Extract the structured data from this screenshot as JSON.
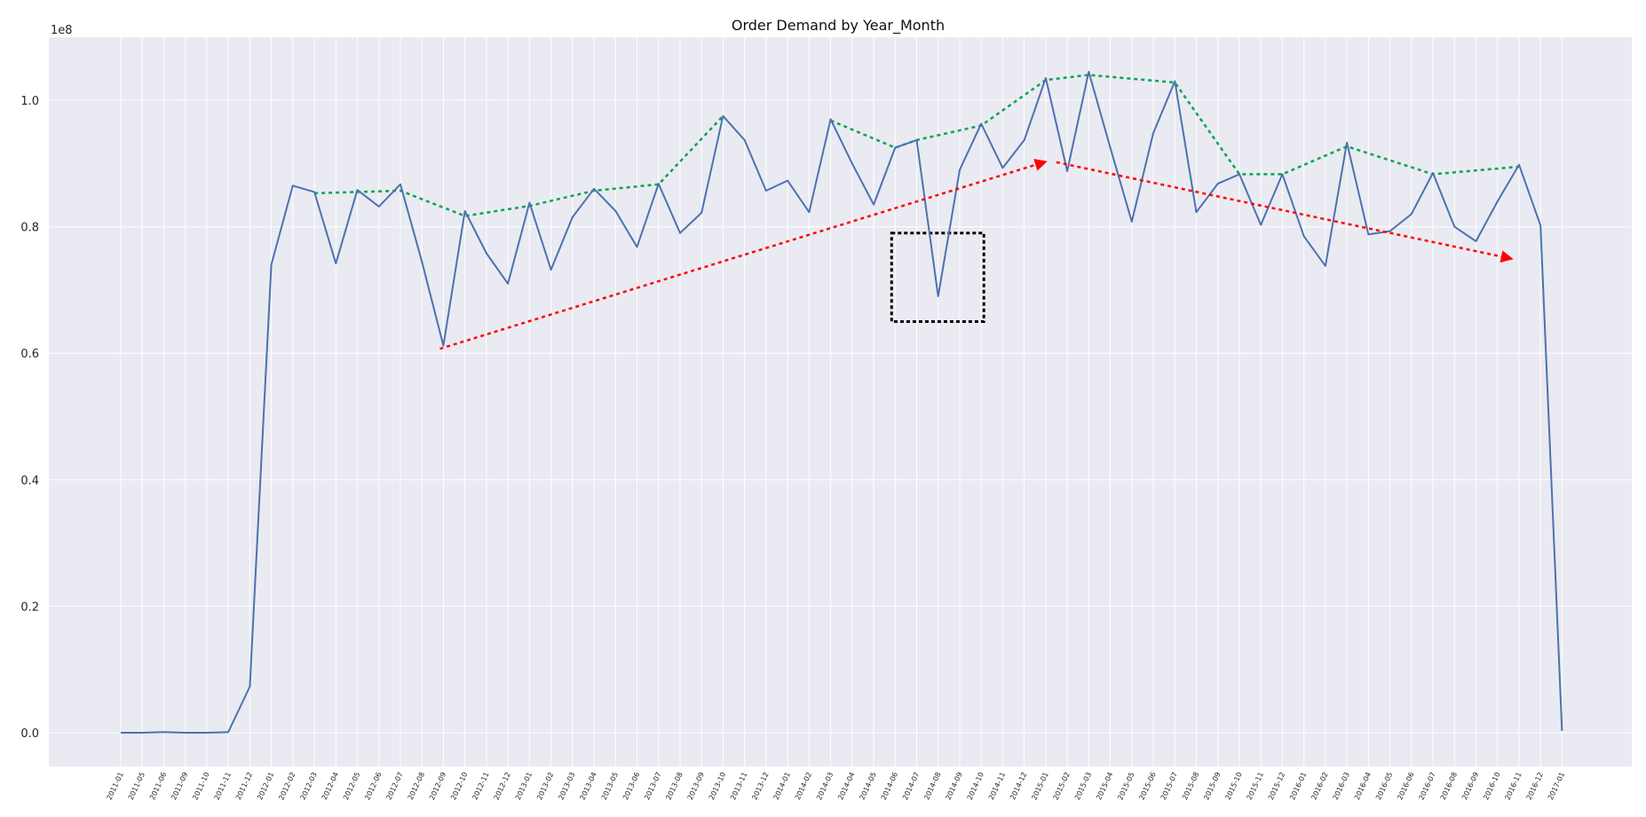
{
  "chart_data": {
    "type": "line",
    "title": "Order Demand by Year_Month",
    "xlabel": "",
    "ylabel": "",
    "y_scale_offset": "1e8",
    "ylim": [
      -0.055,
      1.1
    ],
    "y_ticks": [
      0.0,
      0.2,
      0.4,
      0.6,
      0.8,
      1.0
    ],
    "y_tick_labels": [
      "0.0",
      "0.2",
      "0.4",
      "0.6",
      "0.8",
      "1.0"
    ],
    "grid": true,
    "legend": "none",
    "background": "#eaeaf2",
    "categories": [
      "2011-01",
      "2011-05",
      "2011-06",
      "2011-09",
      "2011-10",
      "2011-11",
      "2011-12",
      "2012-01",
      "2012-02",
      "2012-03",
      "2012-04",
      "2012-05",
      "2012-06",
      "2012-07",
      "2012-08",
      "2012-09",
      "2012-10",
      "2012-11",
      "2012-12",
      "2013-01",
      "2013-02",
      "2013-03",
      "2013-04",
      "2013-05",
      "2013-06",
      "2013-07",
      "2013-08",
      "2013-09",
      "2013-10",
      "2013-11",
      "2013-12",
      "2014-01",
      "2014-02",
      "2014-03",
      "2014-04",
      "2014-05",
      "2014-06",
      "2014-07",
      "2014-08",
      "2014-09",
      "2014-10",
      "2014-11",
      "2014-12",
      "2015-01",
      "2015-02",
      "2015-03",
      "2015-04",
      "2015-05",
      "2015-06",
      "2015-07",
      "2015-08",
      "2015-09",
      "2015-10",
      "2015-11",
      "2015-12",
      "2016-01",
      "2016-02",
      "2016-03",
      "2016-04",
      "2016-05",
      "2016-06",
      "2016-07",
      "2016-08",
      "2016-09",
      "2016-10",
      "2016-11",
      "2016-12",
      "2017-01"
    ],
    "series": [
      {
        "color": "#4c72b0",
        "values": [
          0.0,
          0.0,
          0.001,
          0.0,
          0.0,
          0.001,
          0.073,
          0.74,
          0.865,
          0.855,
          0.742,
          0.858,
          0.832,
          0.867,
          0.745,
          0.612,
          0.825,
          0.758,
          0.71,
          0.838,
          0.732,
          0.815,
          0.86,
          0.825,
          0.768,
          0.868,
          0.79,
          0.822,
          0.975,
          0.937,
          0.857,
          0.873,
          0.823,
          0.97,
          0.9,
          0.835,
          0.925,
          0.937,
          0.69,
          0.89,
          0.963,
          0.893,
          0.937,
          1.035,
          0.888,
          1.045,
          0.925,
          0.808,
          0.948,
          1.03,
          0.823,
          0.868,
          0.883,
          0.803,
          0.883,
          0.785,
          0.738,
          0.933,
          0.788,
          0.793,
          0.82,
          0.885,
          0.8,
          0.777,
          0.84,
          0.898,
          0.802,
          0.003
        ]
      }
    ],
    "annotations": {
      "upper_envelope": {
        "color": "#00a651",
        "style": "dotted",
        "points": [
          [
            "2012-03",
            0.853
          ],
          [
            "2012-05",
            0.855
          ],
          [
            "2012-07",
            0.857
          ],
          [
            "2012-10",
            0.817
          ],
          [
            "2013-01",
            0.833
          ],
          [
            "2013-04",
            0.857
          ],
          [
            "2013-07",
            0.867
          ],
          [
            "2013-10",
            0.975
          ]
        ],
        "points_2": [
          [
            "2014-03",
            0.968
          ],
          [
            "2014-06",
            0.925
          ],
          [
            "2014-07",
            0.937
          ],
          [
            "2014-10",
            0.96
          ],
          [
            "2015-01",
            1.032
          ],
          [
            "2015-03",
            1.04
          ],
          [
            "2015-07",
            1.028
          ],
          [
            "2015-10",
            0.883
          ],
          [
            "2015-12",
            0.883
          ],
          [
            "2016-03",
            0.927
          ],
          [
            "2016-07",
            0.883
          ],
          [
            "2016-11",
            0.895
          ]
        ]
      },
      "trend_arrows": {
        "color": "#ff0000",
        "style": "dotted",
        "arrow_up": [
          [
            "2012-09",
            0.607
          ],
          [
            "2015-01",
            0.902
          ]
        ],
        "arrow_down": [
          [
            "2015-01",
            0.902
          ],
          [
            "2016-10",
            0.75
          ]
        ]
      },
      "highlight_box": {
        "color": "#000000",
        "style": "dotted",
        "x_range": [
          "2014-06",
          "2014-10"
        ],
        "y_range": [
          0.65,
          0.79
        ]
      }
    }
  }
}
